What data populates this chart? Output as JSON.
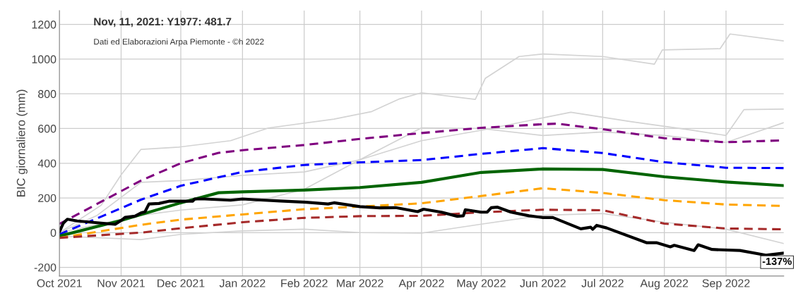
{
  "chart_data": {
    "type": "line",
    "ylabel": "BIC giornaliero (mm)",
    "annotations": [
      "Nov, 11, 2021: Y1977: 481.7",
      "Dati ed Elaborazioni Arpa Piemonte - ©h 2022",
      {
        "text": "-137%",
        "x": "2022-09-30",
        "y": -118
      }
    ],
    "xlim": [
      "2021-10-01",
      "2022-09-30"
    ],
    "xticks": [
      {
        "value": "2021-10-01",
        "label": "Oct 2021"
      },
      {
        "value": "2021-11-01",
        "label": "Nov 2021"
      },
      {
        "value": "2021-12-01",
        "label": "Dec 2021"
      },
      {
        "value": "2022-01-01",
        "label": "Jan 2022"
      },
      {
        "value": "2022-02-01",
        "label": "Feb 2022"
      },
      {
        "value": "2022-03-01",
        "label": "Mar 2022"
      },
      {
        "value": "2022-04-01",
        "label": "Apr 2022"
      },
      {
        "value": "2022-05-01",
        "label": "May 2022"
      },
      {
        "value": "2022-06-01",
        "label": "Jun 2022"
      },
      {
        "value": "2022-07-01",
        "label": "Jul 2022"
      },
      {
        "value": "2022-08-01",
        "label": "Aug 2022"
      },
      {
        "value": "2022-09-01",
        "label": "Sep 2022"
      }
    ],
    "ylim": [
      -250,
      1280
    ],
    "yticks": [
      -200,
      0,
      200,
      400,
      600,
      800,
      1000,
      1200
    ],
    "grid": true,
    "legend": false,
    "marker": "none",
    "series": [
      {
        "color": "#d3d3d3",
        "line_style": "solid",
        "x": [
          "2021-10-01",
          "2021-10-22",
          "2021-11-01",
          "2021-11-11",
          "2021-11-30",
          "2021-12-26",
          "2022-01-14",
          "2022-02-16",
          "2022-03-07",
          "2022-03-21",
          "2022-04-01",
          "2022-04-28",
          "2022-05-03",
          "2022-05-20",
          "2022-06-01",
          "2022-07-01",
          "2022-07-27",
          "2022-07-31",
          "2022-08-29",
          "2022-09-03",
          "2022-09-30"
        ],
        "values": [
          0,
          158,
          333,
          480,
          493,
          530,
          603,
          654,
          698,
          771,
          806,
          768,
          889,
          1015,
          1030,
          1015,
          971,
          1053,
          1060,
          1145,
          1105
        ]
      },
      {
        "color": "#d3d3d3",
        "line_style": "solid",
        "x": [
          "2021-10-01",
          "2021-10-20",
          "2021-11-11",
          "2021-12-01",
          "2022-01-01",
          "2022-02-01",
          "2022-03-01",
          "2022-04-01",
          "2022-05-01",
          "2022-06-15",
          "2022-07-15",
          "2022-08-15",
          "2022-09-01",
          "2022-09-10",
          "2022-09-30"
        ],
        "values": [
          0,
          100,
          290,
          300,
          330,
          350,
          420,
          530,
          590,
          694,
          640,
          590,
          560,
          709,
          712
        ]
      },
      {
        "color": "#d3d3d3",
        "line_style": "solid",
        "x": [
          "2021-10-01",
          "2021-11-11",
          "2021-12-01",
          "2022-01-01",
          "2022-02-01",
          "2022-03-01",
          "2022-04-01",
          "2022-05-01",
          "2022-06-01",
          "2022-07-01",
          "2022-08-01",
          "2022-09-01",
          "2022-09-30"
        ],
        "values": [
          0,
          100,
          130,
          160,
          250,
          420,
          604,
          600,
          560,
          580,
          560,
          520,
          634
        ]
      },
      {
        "color": "#d3d3d3",
        "line_style": "solid",
        "x": [
          "2021-10-01",
          "2021-11-11",
          "2021-12-01",
          "2022-01-01",
          "2022-02-01",
          "2022-03-01",
          "2022-04-01",
          "2022-05-01",
          "2022-06-01",
          "2022-07-01",
          "2022-08-01",
          "2022-09-01",
          "2022-09-30"
        ],
        "values": [
          -20,
          -40,
          -10,
          10,
          20,
          0,
          -3,
          49,
          100,
          110,
          60,
          20,
          -63
        ]
      },
      {
        "color": "#800080",
        "line_style": "dashed",
        "x": [
          "2021-10-01",
          "2021-11-11",
          "2021-12-01",
          "2021-12-20",
          "2022-01-01",
          "2022-02-01",
          "2022-03-01",
          "2022-04-01",
          "2022-05-01",
          "2022-06-01",
          "2022-06-08",
          "2022-07-01",
          "2022-08-01",
          "2022-09-01",
          "2022-09-30"
        ],
        "values": [
          50,
          300,
          400,
          460,
          475,
          505,
          540,
          574,
          604,
          625,
          628,
          596,
          544,
          521,
          532
        ]
      },
      {
        "color": "#0000ff",
        "line_style": "dashed",
        "x": [
          "2021-10-01",
          "2021-11-11",
          "2021-12-01",
          "2022-01-01",
          "2022-02-01",
          "2022-03-01",
          "2022-04-01",
          "2022-05-01",
          "2022-06-01",
          "2022-07-01",
          "2022-08-01",
          "2022-09-01",
          "2022-09-30"
        ],
        "values": [
          -10,
          190,
          270,
          350,
          390,
          405,
          418,
          454,
          487,
          459,
          406,
          374,
          372
        ]
      },
      {
        "color": "#006400",
        "line_style": "solid",
        "x": [
          "2021-10-01",
          "2021-11-01",
          "2021-12-01",
          "2021-12-20",
          "2022-01-01",
          "2022-02-01",
          "2022-03-01",
          "2022-04-01",
          "2022-05-01",
          "2022-06-01",
          "2022-07-01",
          "2022-08-01",
          "2022-09-01",
          "2022-09-30"
        ],
        "values": [
          -20,
          70,
          172,
          230,
          235,
          245,
          260,
          290,
          347,
          367,
          364,
          322,
          292,
          271
        ]
      },
      {
        "color": "#ffa500",
        "line_style": "dashed",
        "x": [
          "2021-10-01",
          "2021-11-11",
          "2021-12-01",
          "2022-01-01",
          "2022-02-01",
          "2022-03-01",
          "2022-04-01",
          "2022-05-01",
          "2022-06-01",
          "2022-07-01",
          "2022-08-01",
          "2022-09-01",
          "2022-09-30"
        ],
        "values": [
          -30,
          45,
          75,
          105,
          135,
          150,
          169,
          211,
          256,
          229,
          187,
          162,
          154
        ]
      },
      {
        "color": "#a52a2a",
        "line_style": "dashed",
        "x": [
          "2021-10-01",
          "2021-11-11",
          "2021-12-01",
          "2022-01-01",
          "2022-02-01",
          "2022-03-01",
          "2022-04-01",
          "2022-05-01",
          "2022-06-01",
          "2022-07-01",
          "2022-08-01",
          "2022-09-01",
          "2022-09-30"
        ],
        "values": [
          -30,
          0,
          25,
          60,
          85,
          95,
          97,
          117,
          132,
          129,
          52,
          24,
          19
        ]
      },
      {
        "color": "#000000",
        "line_style": "solid",
        "x": [
          "2021-10-01",
          "2021-10-03",
          "2021-10-05",
          "2021-10-10",
          "2021-10-22",
          "2021-10-29",
          "2021-11-01",
          "2021-11-03",
          "2021-11-08",
          "2021-11-11",
          "2021-11-13",
          "2021-11-15",
          "2021-11-20",
          "2021-11-25",
          "2021-12-07",
          "2021-12-08",
          "2021-12-13",
          "2021-12-26",
          "2022-01-01",
          "2022-01-07",
          "2022-01-20",
          "2022-02-02",
          "2022-02-13",
          "2022-02-16",
          "2022-03-01",
          "2022-03-11",
          "2022-03-19",
          "2022-03-30",
          "2022-04-02",
          "2022-04-11",
          "2022-04-19",
          "2022-04-22",
          "2022-04-23",
          "2022-05-01",
          "2022-05-04",
          "2022-05-06",
          "2022-05-09",
          "2022-05-16",
          "2022-05-25",
          "2022-06-01",
          "2022-06-06",
          "2022-06-20",
          "2022-06-25",
          "2022-06-26",
          "2022-06-28",
          "2022-07-03",
          "2022-07-23",
          "2022-07-28",
          "2022-08-04",
          "2022-08-06",
          "2022-08-16",
          "2022-08-18",
          "2022-08-25",
          "2022-09-08",
          "2022-09-21",
          "2022-09-30"
        ],
        "values": [
          5,
          55,
          77,
          67,
          55,
          48,
          70,
          88,
          95,
          114,
          120,
          165,
          168,
          181,
          181,
          194,
          194,
          187,
          194,
          190,
          182,
          175,
          165,
          172,
          150,
          143,
          144,
          121,
          135,
          118,
          94,
          97,
          132,
          118,
          118,
          144,
          147,
          118,
          97,
          87,
          87,
          22,
          31,
          19,
          42,
          27,
          -58,
          -58,
          -82,
          -73,
          -103,
          -70,
          -97,
          -103,
          -130,
          -118
        ]
      }
    ]
  }
}
